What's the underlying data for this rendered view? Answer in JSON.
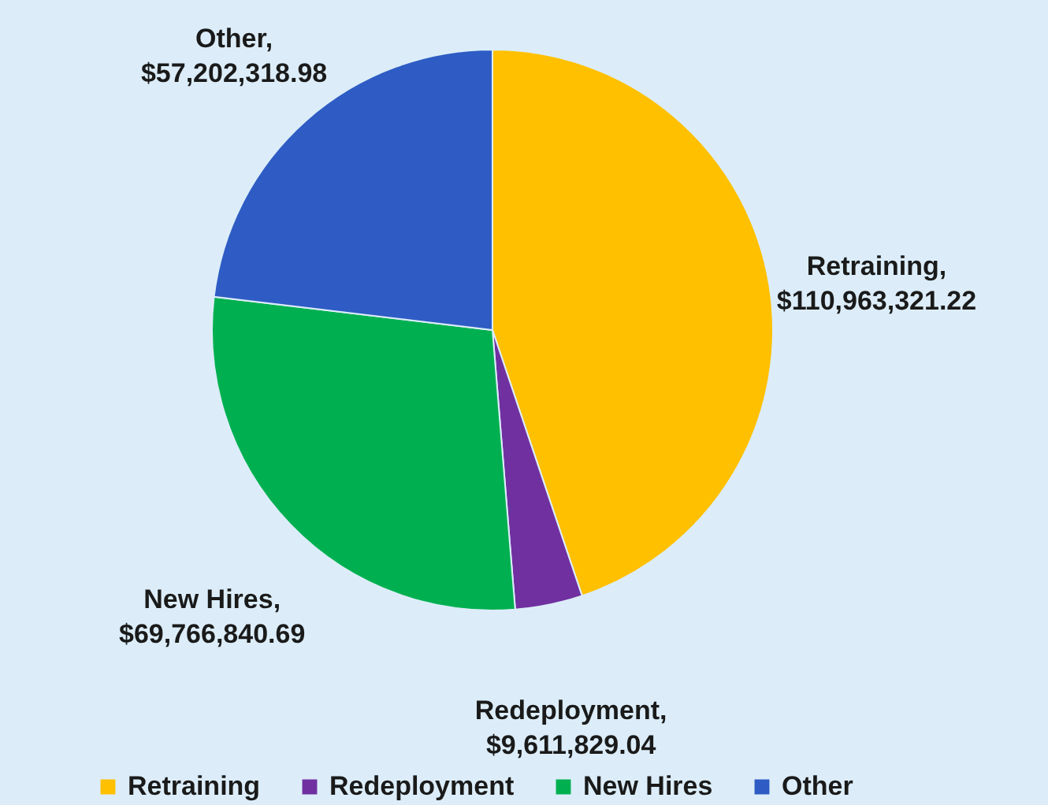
{
  "chart_data": {
    "type": "pie",
    "categories": [
      "Retraining",
      "Redeployment",
      "New Hires",
      "Other"
    ],
    "values": [
      110963321.22,
      9611829.04,
      69766840.69,
      57202318.98
    ],
    "colors": [
      "#ffc000",
      "#7030a0",
      "#00b050",
      "#2e5cc4"
    ],
    "value_labels": [
      "Retraining, $110,963,321.22",
      "Redeployment, $9,611,829.04",
      "New Hires, $69,766,840.69",
      "Other, $57,202,318.98"
    ],
    "legend": "bottom"
  }
}
